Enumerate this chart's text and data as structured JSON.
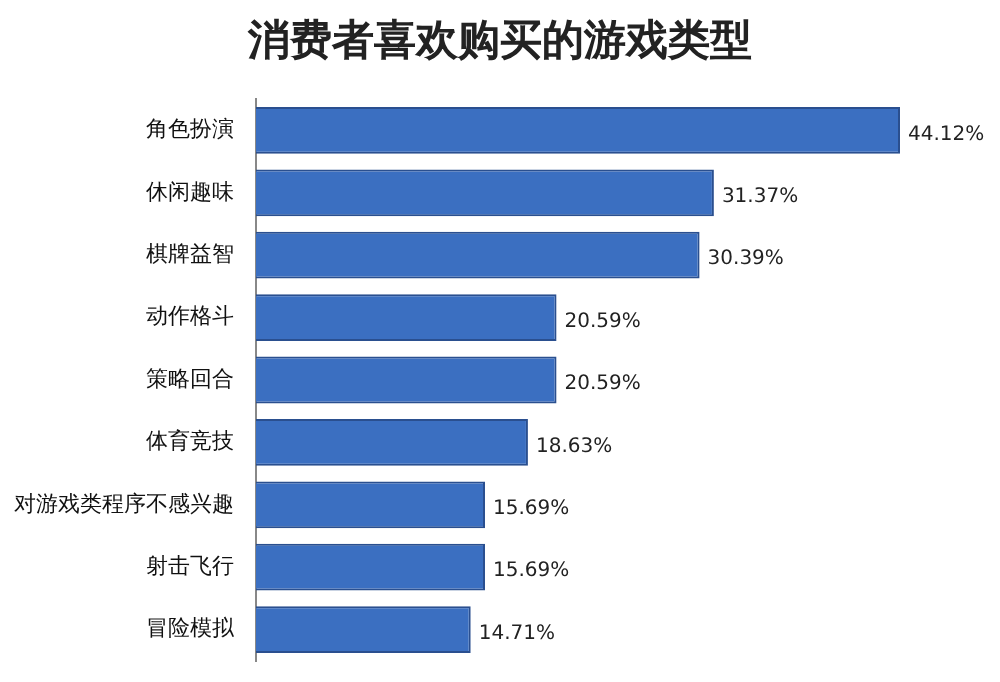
{
  "chart_data": {
    "type": "bar",
    "orientation": "horizontal",
    "title": "消费者喜欢购买的游戏类型",
    "categories": [
      "角色扮演",
      "休闲趣味",
      "棋牌益智",
      "动作格斗",
      "策略回合",
      "体育竞技",
      "对游戏类程序不感兴趣",
      "射击飞行",
      "冒险模拟"
    ],
    "values": [
      44.12,
      31.37,
      30.39,
      20.59,
      20.59,
      18.63,
      15.69,
      15.69,
      14.71
    ],
    "value_labels": [
      "44.12%",
      "31.37%",
      "30.39%",
      "20.59%",
      "20.59%",
      "18.63%",
      "15.69%",
      "15.69%",
      "14.71%"
    ],
    "color": "#3b6fc1",
    "grid": false,
    "legend": false
  }
}
